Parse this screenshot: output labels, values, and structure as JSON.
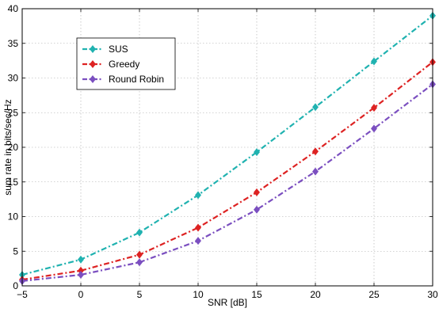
{
  "chart_data": {
    "type": "line",
    "title": "",
    "xlabel": "SNR [dB]",
    "ylabel": "sum rate in bits/sec/Hz",
    "xlim": [
      -5,
      30
    ],
    "ylim": [
      0,
      40
    ],
    "xticks": [
      -5,
      0,
      5,
      10,
      15,
      20,
      25,
      30
    ],
    "yticks": [
      0,
      5,
      10,
      15,
      20,
      25,
      30,
      35,
      40
    ],
    "xtick_labels": [
      "−5",
      "0",
      "5",
      "10",
      "15",
      "20",
      "25",
      "30"
    ],
    "ytick_labels": [
      "0",
      "5",
      "10",
      "15",
      "20",
      "25",
      "30",
      "35",
      "40"
    ],
    "grid": true,
    "legend_position": "upper-left",
    "x": [
      -5,
      0,
      5,
      10,
      15,
      20,
      25,
      30
    ],
    "series": [
      {
        "name": "SUS",
        "color": "#20b2b0",
        "marker": "diamond",
        "values": [
          1.6,
          3.8,
          7.7,
          13.1,
          19.3,
          25.8,
          32.4,
          39.0
        ]
      },
      {
        "name": "Greedy",
        "color": "#dd2222",
        "marker": "diamond",
        "values": [
          0.9,
          2.2,
          4.5,
          8.4,
          13.5,
          19.4,
          25.7,
          32.3
        ]
      },
      {
        "name": "Round Robin",
        "color": "#7b4fc0",
        "marker": "diamond",
        "values": [
          0.7,
          1.6,
          3.4,
          6.5,
          11.0,
          16.5,
          22.7,
          29.1
        ]
      }
    ]
  }
}
